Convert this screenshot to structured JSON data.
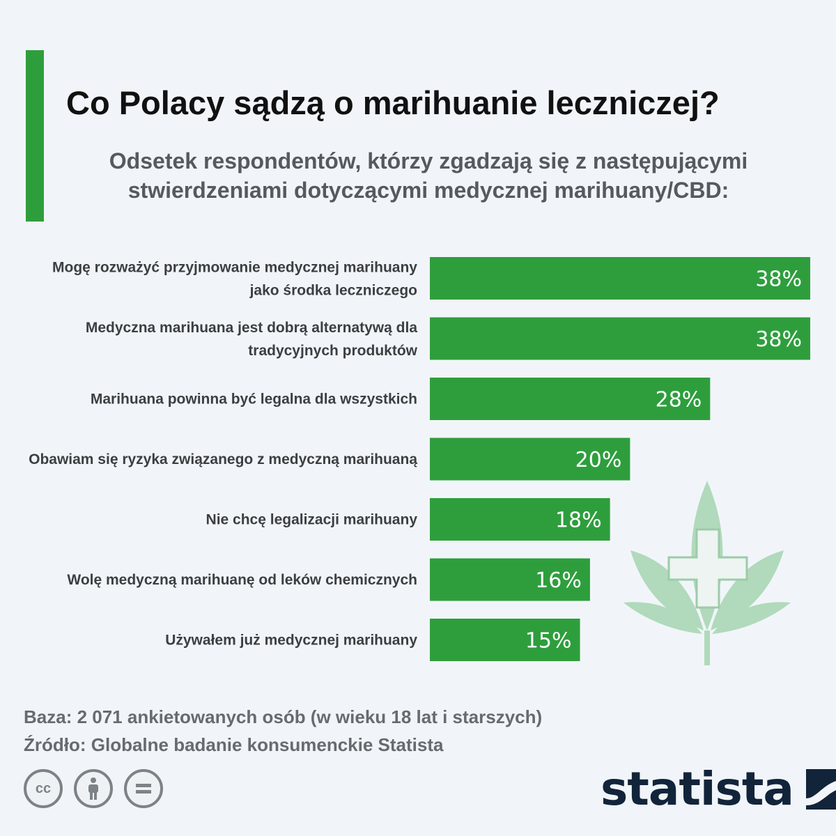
{
  "header": {
    "title": "Co Polacy sądzą o marihuanie leczniczej?",
    "subtitle_line1": "Odsetek respondentów, którzy zgadzają się z następującymi",
    "subtitle_line2": "stwierdzeniami dotyczącymi medycznej marihuany/CBD:"
  },
  "chart_data": {
    "type": "bar",
    "orientation": "horizontal",
    "categories": [
      [
        "Mogę rozważyć przyjmowanie medycznej marihuany",
        "jako środka leczniczego"
      ],
      [
        "Medyczna marihuana jest dobrą alternatywą dla",
        "tradycyjnych produktów"
      ],
      [
        "Marihuana powinna być legalna dla wszystkich"
      ],
      [
        "Obawiam się ryzyka związanego z medyczną marihuaną"
      ],
      [
        "Nie chcę legalizacji marihuany"
      ],
      [
        "Wolę medyczną marihuanę od leków chemicznych"
      ],
      [
        "Używałem już medycznej marihuany"
      ]
    ],
    "values": [
      38,
      38,
      28,
      20,
      18,
      16,
      15
    ],
    "value_labels": [
      "38%",
      "38%",
      "28%",
      "20%",
      "18%",
      "16%",
      "15%"
    ],
    "unit": "%",
    "xlim": [
      0,
      38
    ],
    "bar_color": "#2e9e3d",
    "grid": false,
    "legend": "none"
  },
  "footer": {
    "base": "Baza: 2 071 ankietowanych osób (w wieku 18 lat i starszych)",
    "source": "Źródło: Globalne badanie konsumenckie Statista"
  },
  "license": {
    "cc_label": "cc",
    "icons": [
      "cc-icon",
      "attribution-person-icon",
      "no-derivatives-icon"
    ]
  },
  "brand": {
    "name": "statista",
    "logo_icon": "statista-wave-icon",
    "color": "#12243a"
  },
  "decoration": {
    "icon": "cannabis-leaf-medical-cross-icon",
    "color": "#7cc48a"
  }
}
